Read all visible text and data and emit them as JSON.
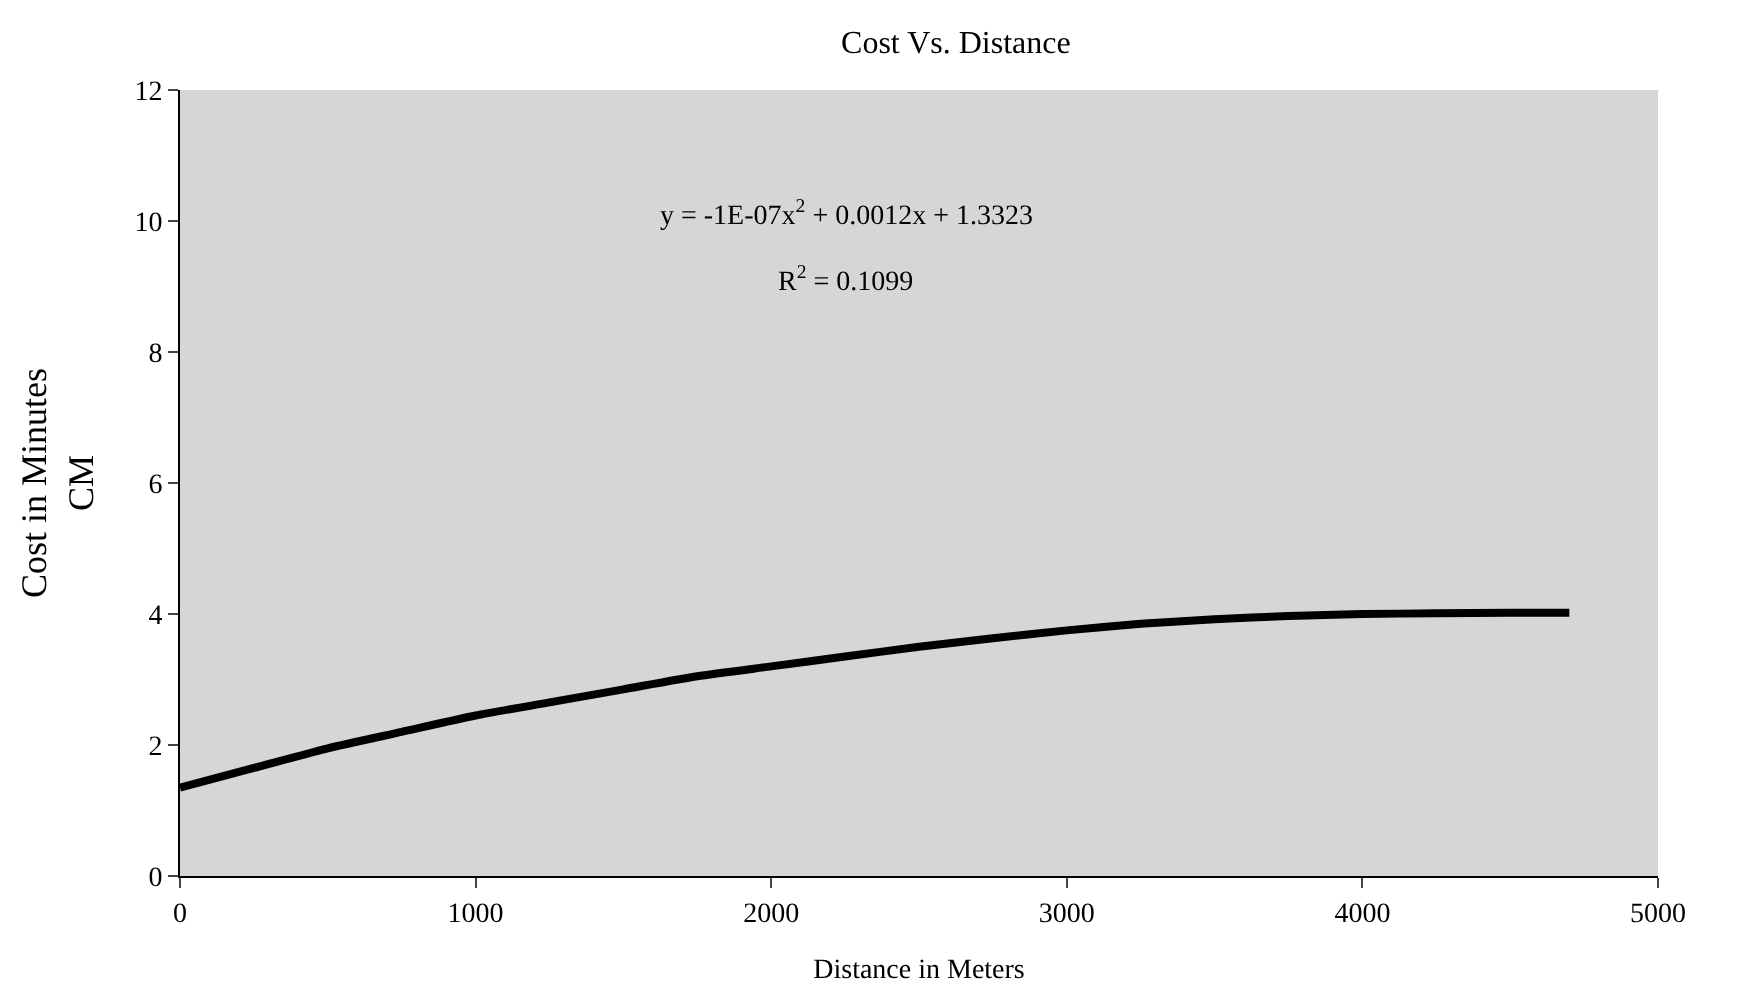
{
  "chart_data": {
    "type": "line",
    "title": "Cost Vs. Distance",
    "xlabel": "Distance in Meters",
    "ylabel": "Cost in Minutes\nCM",
    "annotations": [
      "y = -1E-07x$^{2}$ + 0.0012x + 1.3323",
      "R$^{2}$ = 0.1099"
    ],
    "x": [
      0,
      250,
      500,
      750,
      1000,
      1250,
      1500,
      1750,
      2000,
      2250,
      2500,
      2750,
      3000,
      3250,
      3500,
      3750,
      4000,
      4250,
      4500,
      4700
    ],
    "series": [
      {
        "color": "#000000",
        "values": [
          1.35,
          1.65,
          1.95,
          2.2,
          2.45,
          2.65,
          2.85,
          3.05,
          3.2,
          3.35,
          3.5,
          3.63,
          3.75,
          3.85,
          3.92,
          3.97,
          4.0,
          4.01,
          4.02,
          4.02
        ]
      }
    ],
    "xlim": [
      0,
      5000
    ],
    "xticks": [
      0,
      1000,
      2000,
      3000,
      4000,
      5000
    ],
    "ylim": [
      0,
      12
    ],
    "yticks": [
      0,
      2,
      4,
      6,
      8,
      10,
      12
    ],
    "grid": false,
    "marker": "none",
    "line_style": "solid"
  }
}
